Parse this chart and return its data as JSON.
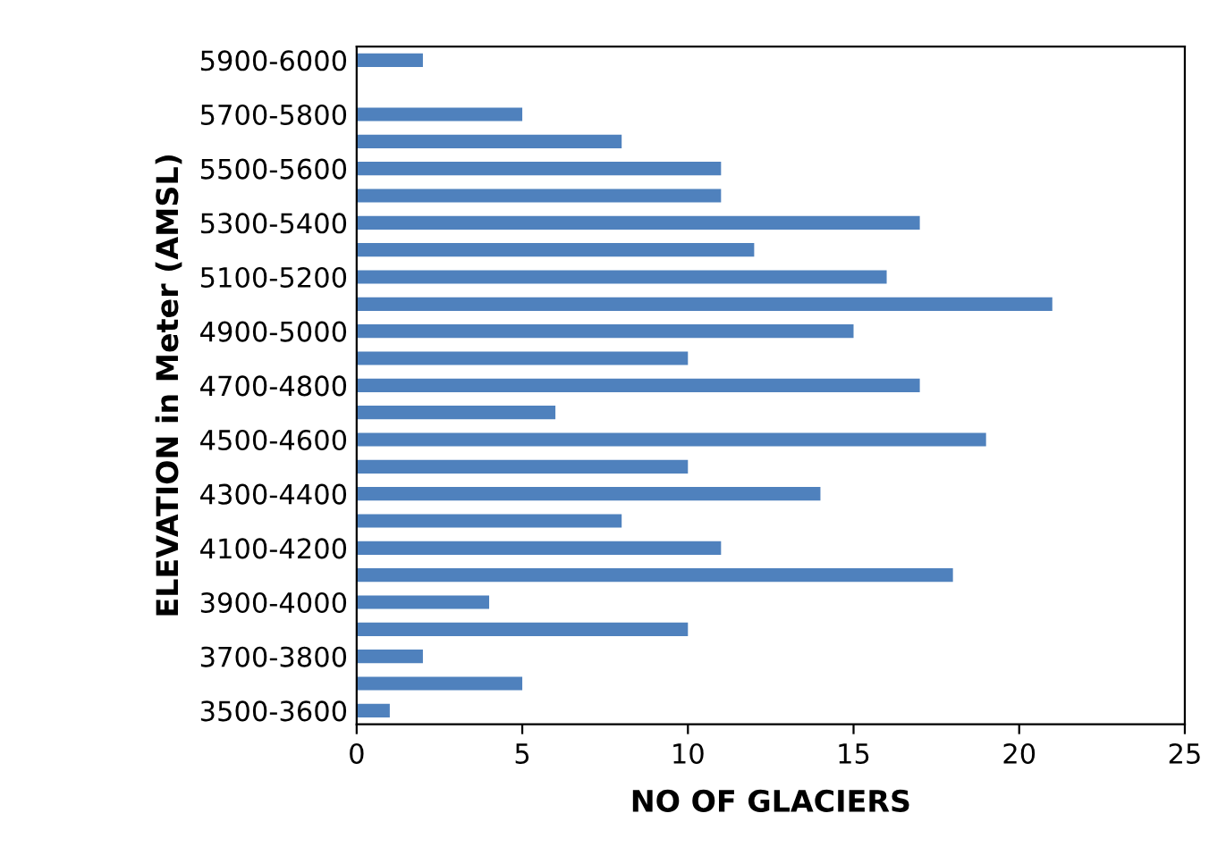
{
  "chart_data": {
    "type": "bar",
    "orientation": "horizontal",
    "xlabel": "NO OF GLACIERS",
    "ylabel": "ELEVATION in Meter (AMSL)",
    "categories": [
      "5900-6000",
      null,
      "5700-5800",
      null,
      "5500-5600",
      null,
      "5300-5400",
      null,
      "5100-5200",
      null,
      "4900-5000",
      null,
      "4700-4800",
      null,
      "4500-4600",
      null,
      "4300-4400",
      null,
      "4100-4200",
      null,
      "3900-4000",
      null,
      "3700-3800",
      null,
      "3500-3600"
    ],
    "values": [
      2,
      0,
      5,
      8,
      11,
      11,
      17,
      12,
      16,
      21,
      15,
      10,
      17,
      6,
      19,
      10,
      14,
      8,
      11,
      18,
      4,
      10,
      2,
      5,
      1
    ],
    "color": "#4f81bd",
    "xlim": [
      0,
      25
    ],
    "xticks": [
      0,
      5,
      10,
      15,
      20,
      25
    ],
    "grid": false
  }
}
